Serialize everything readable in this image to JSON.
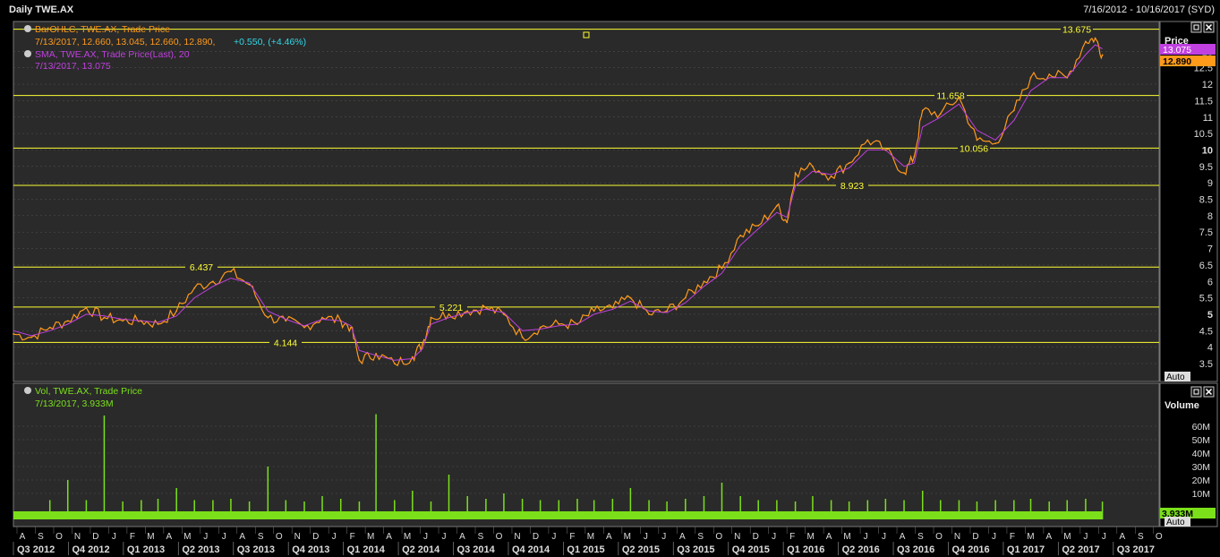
{
  "window": {
    "title": "Daily TWE.AX",
    "range": "7/16/2012 - 10/16/2017 (SYD)"
  },
  "legend": {
    "bar_label": "BarOHLC, TWE.AX, Trade Price",
    "bar_values": "7/13/2017, 12.660, 13.045, 12.660, 12.890,",
    "bar_change": "+0.550, (+4.46%)",
    "sma_label": "SMA, TWE.AX, Trade Price(Last), 20",
    "sma_values": "7/13/2017, 13.075",
    "vol_label": "Vol, TWE.AX, Trade Price",
    "vol_values": "7/13/2017, 3.933M"
  },
  "price_axis": {
    "title": "Price",
    "sma_tag": "13.075",
    "last_tag": "12.890",
    "auto": "Auto",
    "ticks": [
      "13",
      "12.5",
      "12",
      "11.5",
      "11",
      "10.5",
      "10",
      "9.5",
      "9",
      "8.5",
      "8",
      "7.5",
      "7",
      "6.5",
      "6",
      "5.5",
      "5",
      "4.5",
      "4",
      "3.5"
    ]
  },
  "volume_axis": {
    "title": "Volume",
    "last_tag": "3.933M",
    "auto": "Auto",
    "ticks": [
      "60M",
      "50M",
      "40M",
      "30M",
      "20M",
      "10M"
    ]
  },
  "months": [
    "A",
    "S",
    "O",
    "N",
    "D",
    "J",
    "F",
    "M",
    "A",
    "M",
    "J",
    "J",
    "A",
    "S",
    "O",
    "N",
    "D",
    "J",
    "F",
    "M",
    "A",
    "M",
    "J",
    "J",
    "A",
    "S",
    "O",
    "N",
    "D",
    "J",
    "F",
    "M",
    "A",
    "M",
    "J",
    "J",
    "A",
    "S",
    "O",
    "N",
    "D",
    "J",
    "F",
    "M",
    "A",
    "M",
    "J",
    "J",
    "A",
    "S",
    "O",
    "N",
    "D",
    "J",
    "F",
    "M",
    "A",
    "M",
    "J",
    "J",
    "A",
    "S",
    "O"
  ],
  "quarters": [
    "Q3 2012",
    "Q4 2012",
    "Q1 2013",
    "Q2 2013",
    "Q3 2013",
    "Q4 2013",
    "Q1 2014",
    "Q2 2014",
    "Q3 2014",
    "Q4 2014",
    "Q1 2015",
    "Q2 2015",
    "Q3 2015",
    "Q4 2015",
    "Q1 2016",
    "Q2 2016",
    "Q3 2016",
    "Q4 2016",
    "Q1 2017",
    "Q2 2017",
    "Q3 2017"
  ],
  "level_labels": [
    "13.675",
    "11.658",
    "10.056",
    "8.923",
    "6.437",
    "5.221",
    "4.144"
  ],
  "colors": {
    "price": "#ff9a1a",
    "sma": "#c040e0",
    "volume": "#7be01a",
    "levels": "#ffff33",
    "grid": "#555555",
    "panel": "#2a2a2a"
  },
  "chart_data": [
    {
      "type": "line",
      "title": "Daily TWE.AX",
      "ylabel": "Price",
      "ylim": [
        3.2,
        14.0
      ],
      "x": [
        "2012-07-16",
        "2012-08-15",
        "2012-09-15",
        "2012-10-15",
        "2012-11-15",
        "2012-12-15",
        "2013-01-15",
        "2013-02-15",
        "2013-03-15",
        "2013-04-15",
        "2013-05-15",
        "2013-06-15",
        "2013-07-15",
        "2013-08-15",
        "2013-09-15",
        "2013-10-15",
        "2013-11-15",
        "2013-12-15",
        "2014-01-15",
        "2014-02-01",
        "2014-02-15",
        "2014-03-15",
        "2014-04-15",
        "2014-05-15",
        "2014-06-01",
        "2014-06-15",
        "2014-07-15",
        "2014-08-15",
        "2014-09-15",
        "2014-10-15",
        "2014-11-15",
        "2014-12-15",
        "2015-01-15",
        "2015-02-15",
        "2015-03-15",
        "2015-04-15",
        "2015-05-15",
        "2015-06-15",
        "2015-07-15",
        "2015-08-15",
        "2015-09-15",
        "2015-10-15",
        "2015-11-15",
        "2015-12-15",
        "2016-01-15",
        "2016-02-01",
        "2016-02-15",
        "2016-03-15",
        "2016-04-15",
        "2016-05-15",
        "2016-06-15",
        "2016-07-15",
        "2016-08-15",
        "2016-09-01",
        "2016-09-15",
        "2016-10-15",
        "2016-11-15",
        "2016-12-15",
        "2017-01-15",
        "2017-02-15",
        "2017-03-15",
        "2017-04-15",
        "2017-05-15",
        "2017-06-15",
        "2017-07-01",
        "2017-07-13"
      ],
      "series": [
        {
          "name": "BarOHLC",
          "values": [
            4.4,
            4.3,
            4.6,
            4.8,
            5.2,
            4.9,
            4.8,
            4.8,
            4.7,
            5.1,
            5.8,
            6.0,
            6.3,
            5.9,
            4.9,
            4.8,
            4.6,
            4.9,
            4.8,
            4.6,
            3.6,
            3.8,
            3.5,
            3.7,
            4.1,
            4.9,
            5.0,
            5.1,
            5.2,
            5.0,
            4.3,
            4.6,
            4.7,
            4.7,
            5.1,
            5.2,
            5.5,
            5.0,
            5.1,
            5.5,
            6.0,
            6.4,
            7.4,
            7.7,
            8.3,
            7.8,
            9.3,
            9.5,
            9.2,
            9.6,
            10.3,
            10.0,
            9.3,
            9.8,
            11.2,
            11.1,
            11.6,
            10.3,
            10.2,
            11.2,
            12.2,
            12.3,
            12.2,
            13.3,
            13.4,
            12.89
          ]
        },
        {
          "name": "SMA",
          "values": [
            4.5,
            4.35,
            4.5,
            4.7,
            5.0,
            4.95,
            4.85,
            4.8,
            4.75,
            4.95,
            5.5,
            5.85,
            6.1,
            5.95,
            5.1,
            4.85,
            4.65,
            4.85,
            4.8,
            4.65,
            3.9,
            3.75,
            3.6,
            3.65,
            3.95,
            4.7,
            4.9,
            5.05,
            5.15,
            5.05,
            4.5,
            4.55,
            4.65,
            4.7,
            5.0,
            5.15,
            5.4,
            5.1,
            5.05,
            5.35,
            5.85,
            6.25,
            7.1,
            7.6,
            8.1,
            7.95,
            8.9,
            9.35,
            9.25,
            9.45,
            10.0,
            10.0,
            9.5,
            9.6,
            10.7,
            11.0,
            11.4,
            10.6,
            10.3,
            10.9,
            11.8,
            12.2,
            12.2,
            12.9,
            13.2,
            13.075
          ]
        }
      ],
      "levels": [
        13.675,
        11.658,
        10.056,
        8.923,
        6.437,
        5.221,
        4.144
      ]
    },
    {
      "type": "bar",
      "title": "Vol, TWE.AX, Trade Price",
      "ylabel": "Volume",
      "ylim": [
        0,
        70
      ],
      "x": [
        "2012-09-15",
        "2012-10-15",
        "2012-11-15",
        "2012-12-15",
        "2013-01-15",
        "2013-02-15",
        "2013-03-15",
        "2013-04-15",
        "2013-05-15",
        "2013-06-15",
        "2013-07-15",
        "2013-08-15",
        "2013-09-15",
        "2013-10-15",
        "2013-11-15",
        "2013-12-15",
        "2014-01-15",
        "2014-02-15",
        "2014-03-15",
        "2014-04-15",
        "2014-05-15",
        "2014-06-15",
        "2014-07-15",
        "2014-08-15",
        "2014-09-15",
        "2014-10-15",
        "2014-11-15",
        "2014-12-15",
        "2015-01-15",
        "2015-02-15",
        "2015-03-15",
        "2015-04-15",
        "2015-05-15",
        "2015-06-15",
        "2015-07-15",
        "2015-08-15",
        "2015-09-15",
        "2015-10-15",
        "2015-11-15",
        "2015-12-15",
        "2016-01-15",
        "2016-02-15",
        "2016-03-15",
        "2016-04-15",
        "2016-05-15",
        "2016-06-15",
        "2016-07-15",
        "2016-08-15",
        "2016-09-15",
        "2016-10-15",
        "2016-11-15",
        "2016-12-15",
        "2017-01-15",
        "2017-02-15",
        "2017-03-15",
        "2017-04-15",
        "2017-05-15",
        "2017-06-15",
        "2017-07-13"
      ],
      "values": [
        5,
        20,
        5,
        68,
        4,
        5,
        6,
        14,
        5,
        5,
        6,
        4,
        30,
        5,
        4,
        8,
        6,
        4,
        69,
        5,
        12,
        4,
        24,
        8,
        6,
        10,
        6,
        5,
        5,
        6,
        5,
        6,
        14,
        5,
        4,
        6,
        8,
        18,
        8,
        5,
        5,
        4,
        8,
        5,
        4,
        5,
        6,
        5,
        12,
        5,
        5,
        4,
        5,
        5,
        6,
        4,
        5,
        6,
        3.933
      ],
      "unit": "M"
    }
  ]
}
